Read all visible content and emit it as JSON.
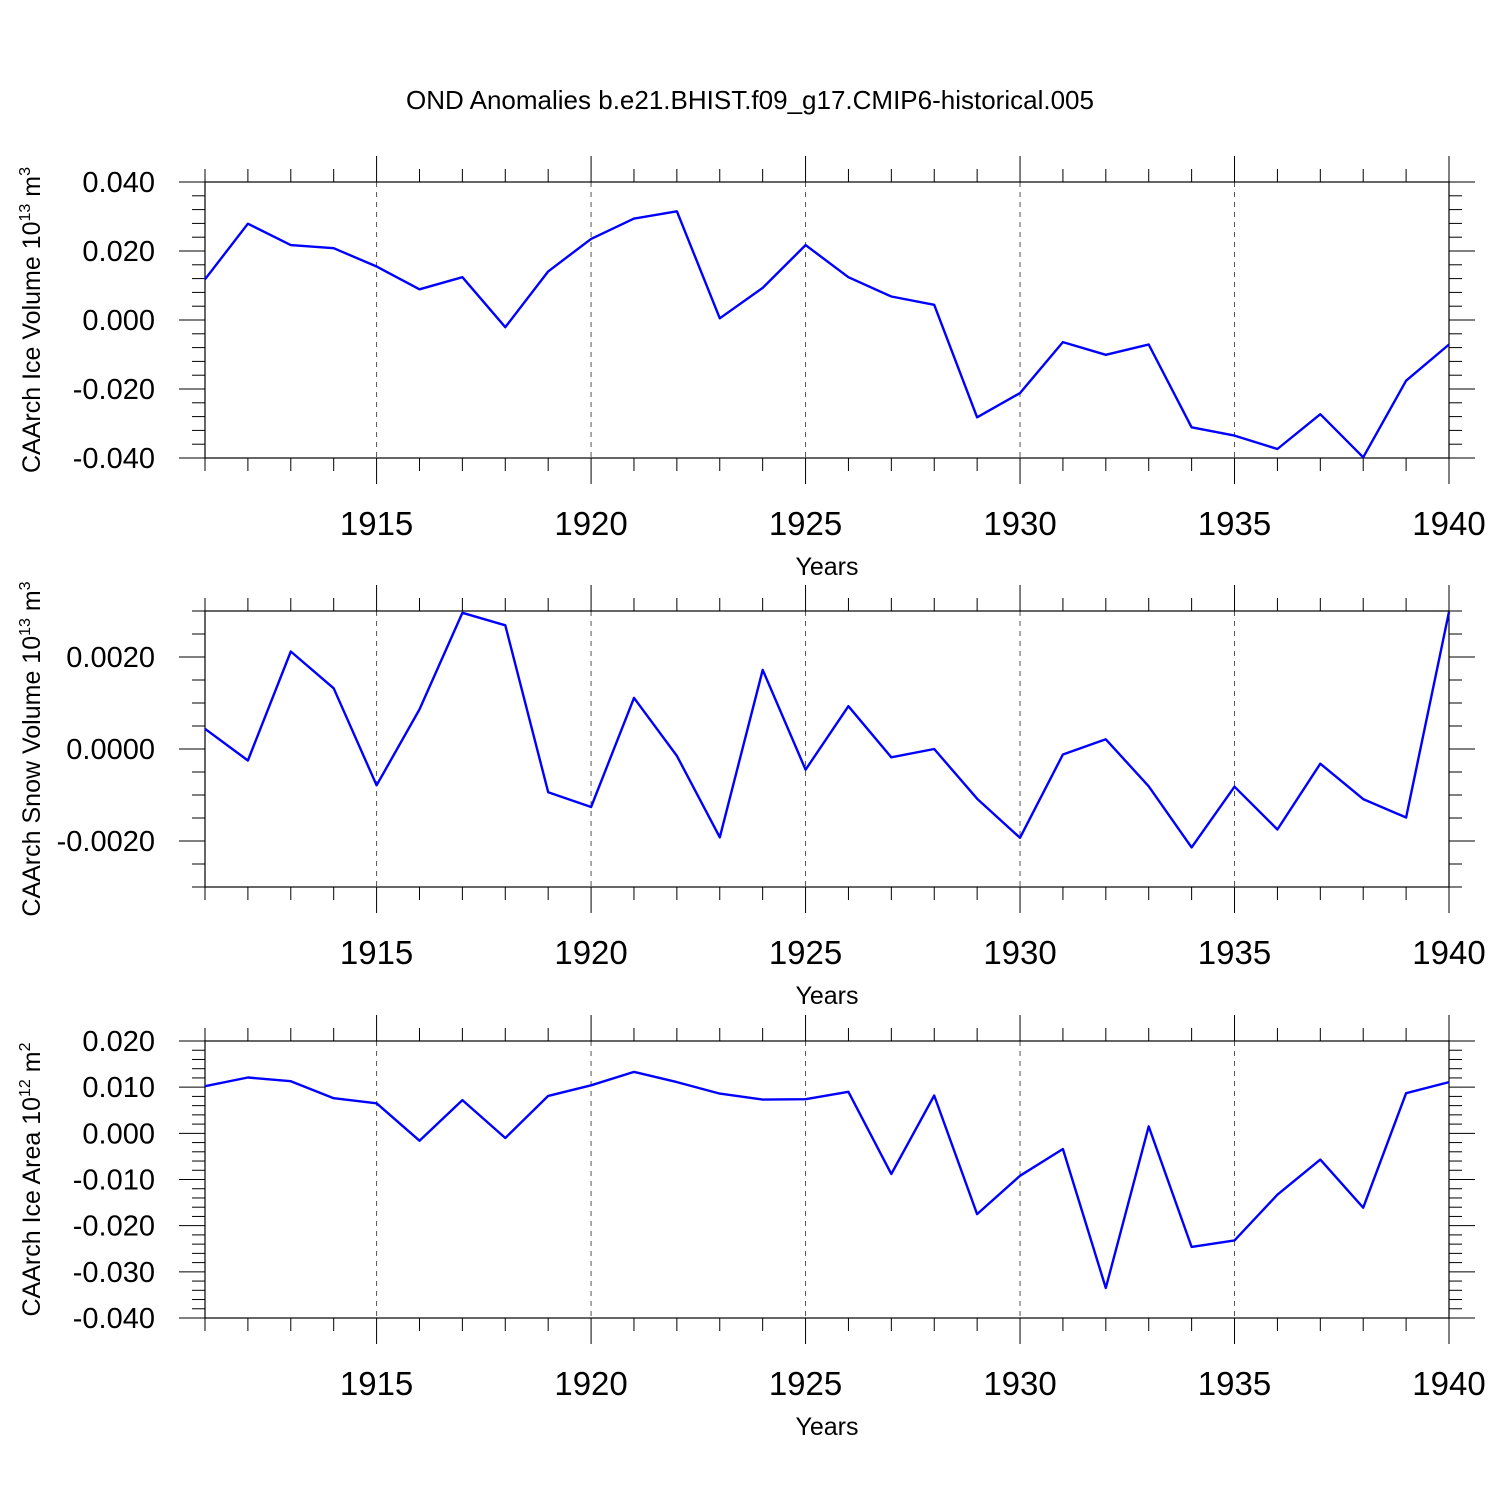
{
  "title": "OND Anomalies b.e21.BHIST.f09_g17.CMIP6-historical.005",
  "chart_data": [
    {
      "type": "line",
      "ylabel_main": "CAArch Ice Volume 10",
      "ylabel_exp": "13",
      "ylabel_unit": " m",
      "ylabel_unit_exp": "3",
      "xlabel": "Years",
      "xlim": [
        1911,
        1940
      ],
      "ylim": [
        -0.04,
        0.04
      ],
      "grid": "dashed vertical at major x ticks",
      "xticks": [
        1915,
        1920,
        1925,
        1930,
        1935,
        1940
      ],
      "xtick_labels": [
        "1915",
        "1920",
        "1925",
        "1930",
        "1935",
        "1940"
      ],
      "yticks": [
        0.04,
        0.02,
        0.0,
        -0.02,
        -0.04
      ],
      "ytick_labels": [
        "0.040",
        "0.020",
        "0.000",
        "-0.020",
        "-0.040"
      ],
      "y_minor_step": 0.004,
      "series": [
        {
          "name": "CAArch Ice Volume",
          "color": "#0000ff",
          "x": [
            1911,
            1912,
            1913,
            1914,
            1915,
            1916,
            1917,
            1918,
            1919,
            1920,
            1921,
            1922,
            1923,
            1924,
            1925,
            1926,
            1927,
            1928,
            1929,
            1930,
            1931,
            1932,
            1933,
            1934,
            1935,
            1936,
            1937,
            1938,
            1939,
            1940
          ],
          "y": [
            0.0118,
            0.0279,
            0.0217,
            0.0208,
            0.0155,
            0.0089,
            0.0124,
            -0.0021,
            0.0141,
            0.0235,
            0.0294,
            0.0315,
            0.0005,
            0.0093,
            0.0217,
            0.0124,
            0.0068,
            0.0044,
            -0.0282,
            -0.0212,
            -0.0064,
            -0.0101,
            -0.0071,
            -0.0311,
            -0.0335,
            -0.0374,
            -0.0273,
            -0.0398,
            -0.0176,
            -0.0071
          ]
        }
      ]
    },
    {
      "type": "line",
      "ylabel_main": "CAArch Snow Volume 10",
      "ylabel_exp": "13",
      "ylabel_unit": " m",
      "ylabel_unit_exp": "3",
      "xlabel": "Years",
      "xlim": [
        1911,
        1940
      ],
      "ylim": [
        -0.003,
        0.003
      ],
      "grid": "dashed vertical at major x ticks",
      "xticks": [
        1915,
        1920,
        1925,
        1930,
        1935,
        1940
      ],
      "xtick_labels": [
        "1915",
        "1920",
        "1925",
        "1930",
        "1935",
        "1940"
      ],
      "yticks": [
        0.002,
        0.0,
        -0.002
      ],
      "ytick_labels": [
        "0.0020",
        "0.0000",
        "-0.0020"
      ],
      "y_minor_step": 0.0005,
      "series": [
        {
          "name": "CAArch Snow Volume",
          "color": "#0000ff",
          "x": [
            1911,
            1912,
            1913,
            1914,
            1915,
            1916,
            1917,
            1918,
            1919,
            1920,
            1921,
            1922,
            1923,
            1924,
            1925,
            1926,
            1927,
            1928,
            1929,
            1930,
            1931,
            1932,
            1933,
            1934,
            1935,
            1936,
            1937,
            1938,
            1939,
            1940
          ],
          "y": [
            0.00044,
            -0.00025,
            0.00212,
            0.00132,
            -0.00079,
            0.00086,
            0.00296,
            0.00269,
            -0.00094,
            -0.00126,
            0.00111,
            -0.00015,
            -0.00192,
            0.00172,
            -0.00045,
            0.00093,
            -0.00018,
            0.0,
            -0.00108,
            -0.00193,
            -0.00012,
            0.00021,
            -0.00081,
            -0.00214,
            -0.00082,
            -0.00175,
            -0.00032,
            -0.00109,
            -0.00149,
            0.00298
          ]
        }
      ]
    },
    {
      "type": "line",
      "ylabel_main": "CAArch Ice Area 10",
      "ylabel_exp": "12",
      "ylabel_unit": " m",
      "ylabel_unit_exp": "2",
      "xlabel": "Years",
      "xlim": [
        1911,
        1940
      ],
      "ylim": [
        -0.04,
        0.02
      ],
      "grid": "dashed vertical at major x ticks",
      "xticks": [
        1915,
        1920,
        1925,
        1930,
        1935,
        1940
      ],
      "xtick_labels": [
        "1915",
        "1920",
        "1925",
        "1930",
        "1935",
        "1940"
      ],
      "yticks": [
        0.02,
        0.01,
        0.0,
        -0.01,
        -0.02,
        -0.03,
        -0.04
      ],
      "ytick_labels": [
        "0.020",
        "0.010",
        "0.000",
        "-0.010",
        "-0.020",
        "-0.030",
        "-0.040"
      ],
      "y_minor_step": 0.002,
      "series": [
        {
          "name": "CAArch Ice Area",
          "color": "#0000ff",
          "x": [
            1911,
            1912,
            1913,
            1914,
            1915,
            1916,
            1917,
            1918,
            1919,
            1920,
            1921,
            1922,
            1923,
            1924,
            1925,
            1926,
            1927,
            1928,
            1929,
            1930,
            1931,
            1932,
            1933,
            1934,
            1935,
            1936,
            1937,
            1938,
            1939,
            1940
          ],
          "y": [
            0.0102,
            0.0121,
            0.0113,
            0.0076,
            0.0065,
            -0.0016,
            0.0072,
            -0.001,
            0.0081,
            0.0104,
            0.0133,
            0.0111,
            0.0086,
            0.0073,
            0.0074,
            0.009,
            -0.0088,
            0.0082,
            -0.0175,
            -0.0092,
            -0.0034,
            -0.0335,
            0.0015,
            -0.0246,
            -0.0232,
            -0.0133,
            -0.0057,
            -0.0161,
            0.0087,
            0.0111
          ]
        }
      ]
    }
  ]
}
